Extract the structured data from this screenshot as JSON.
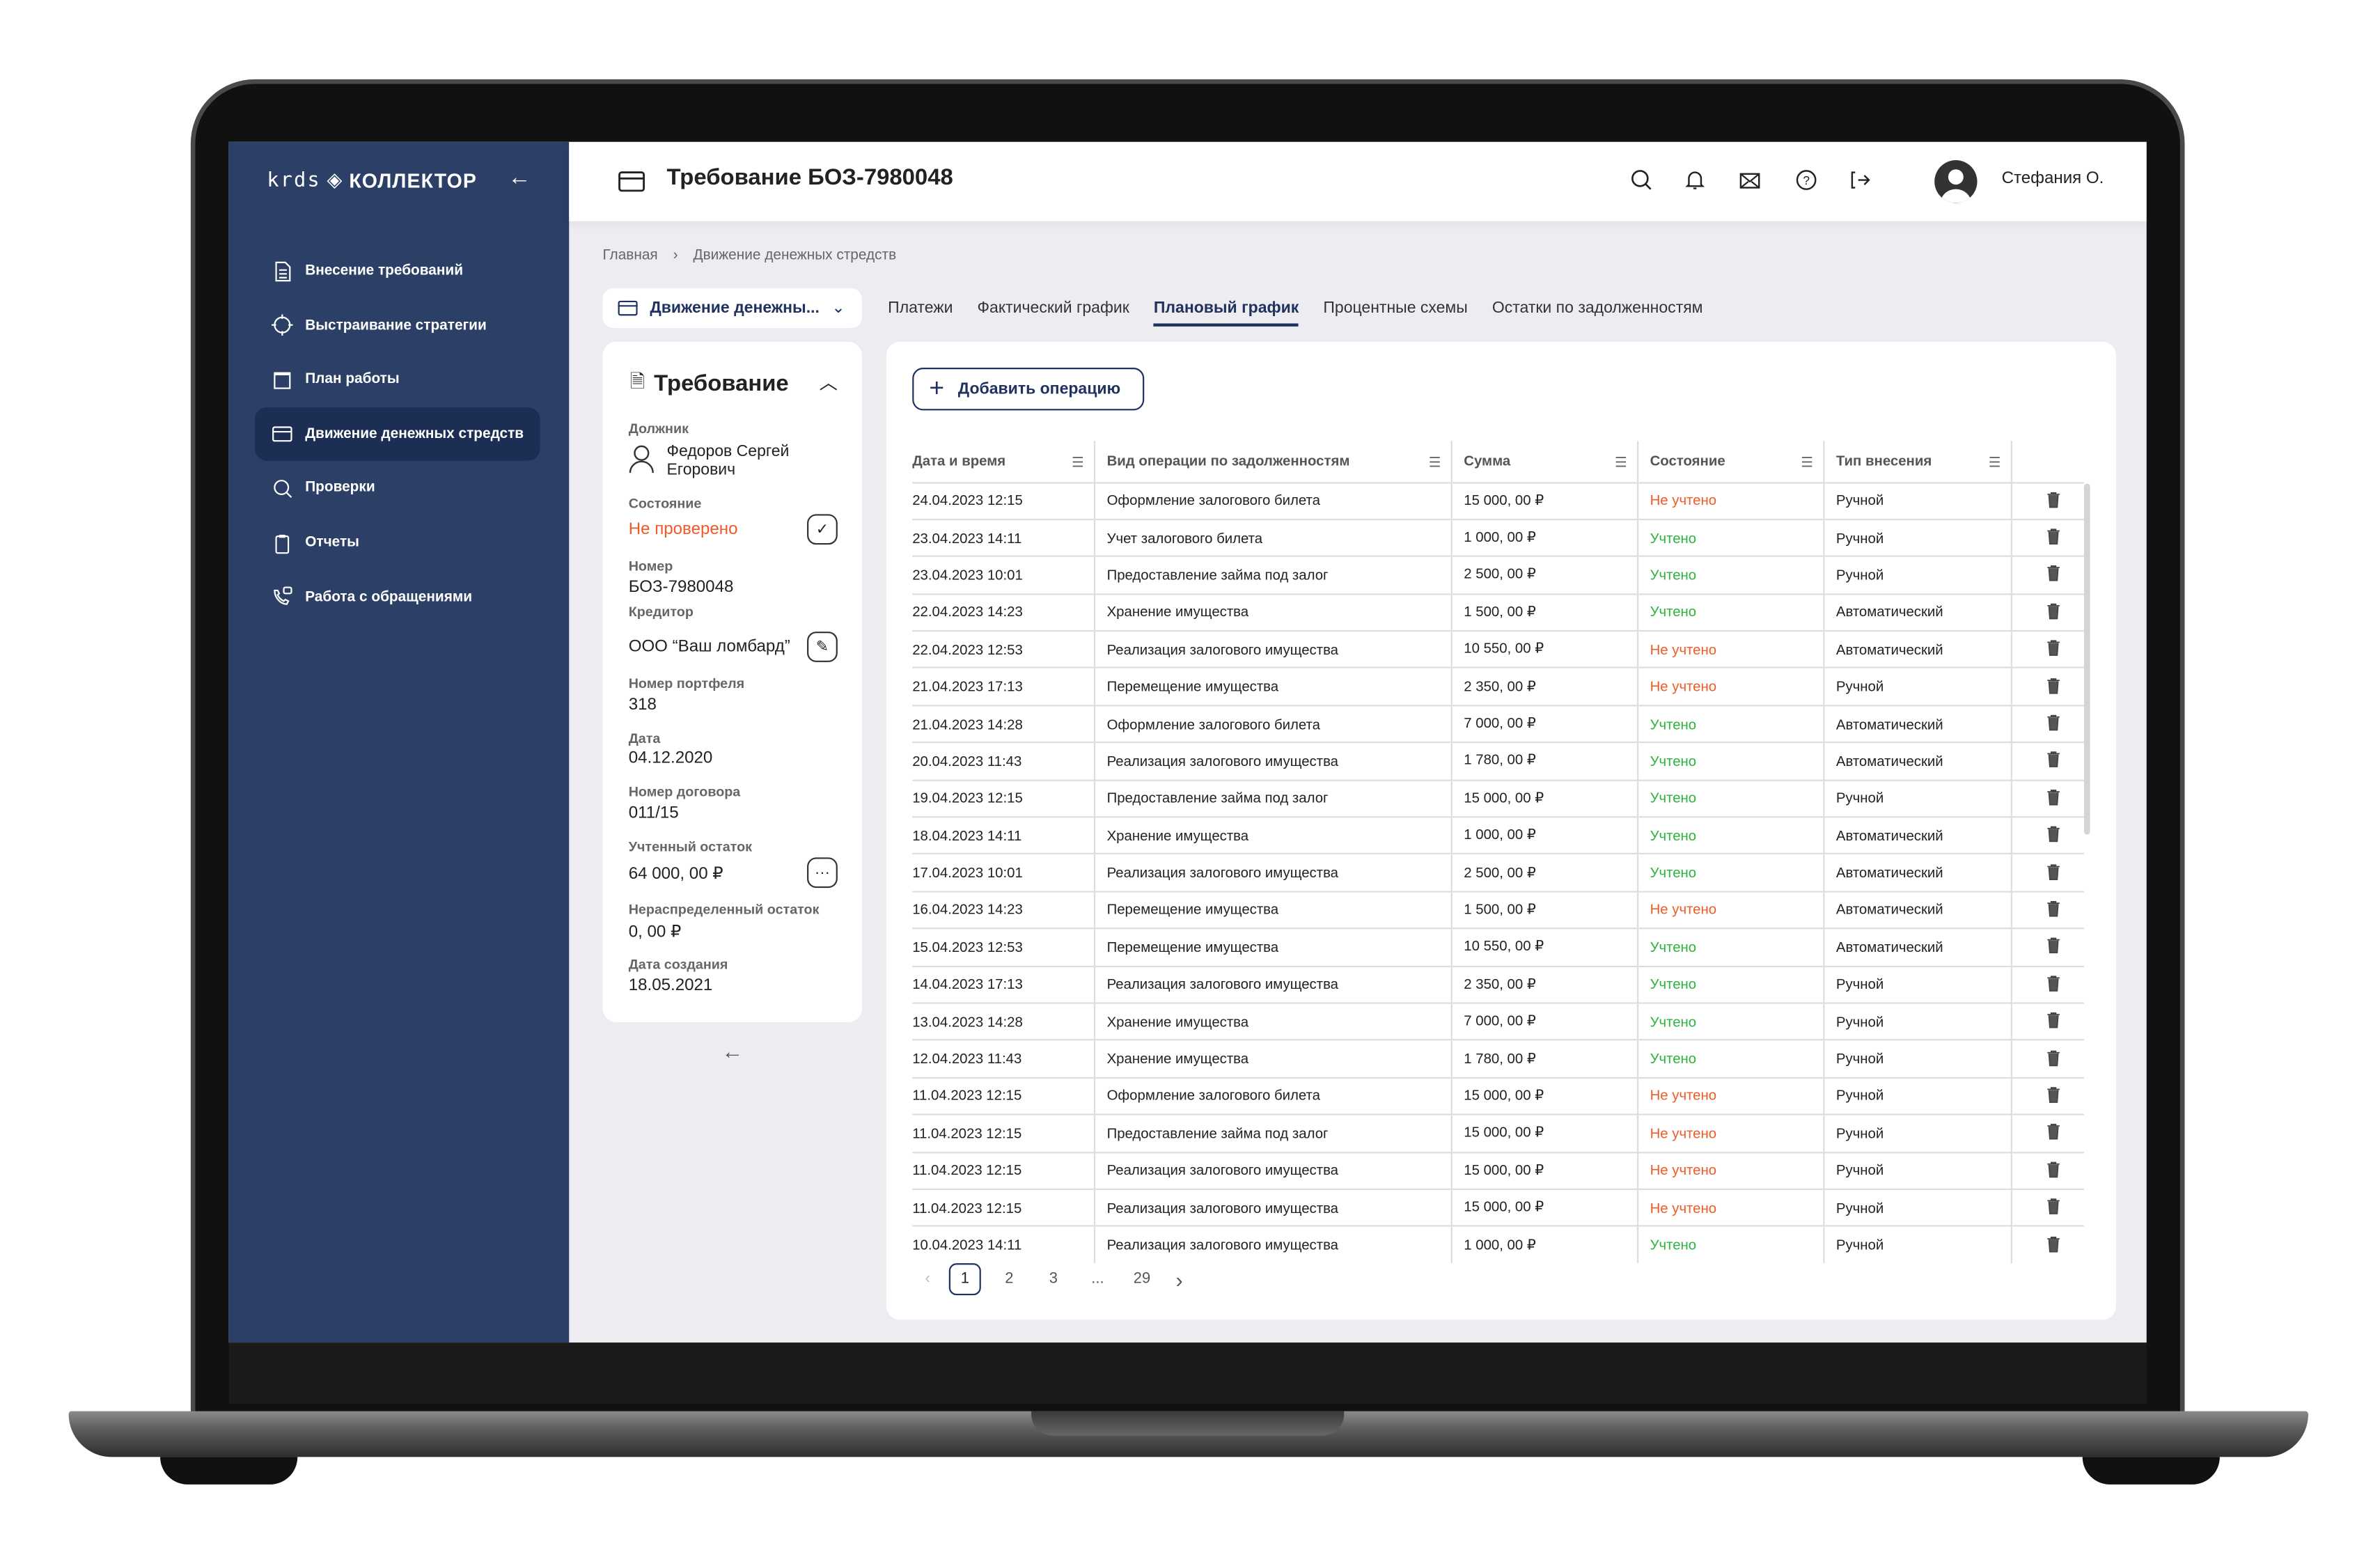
{
  "brand": {
    "prefix": "krds",
    "name": "КОЛЛЕКТОР"
  },
  "sidebar": {
    "items": [
      {
        "label": "Внесение требований",
        "icon": "document-icon"
      },
      {
        "label": "Выстраивание стратегии",
        "icon": "target-icon"
      },
      {
        "label": "План работы",
        "icon": "calendar-icon"
      },
      {
        "label": "Движение денежных стредств",
        "icon": "card-icon",
        "active": true
      },
      {
        "label": "Проверки",
        "icon": "search-icon"
      },
      {
        "label": "Отчеты",
        "icon": "clipboard-icon"
      },
      {
        "label": "Работа с обращениями",
        "icon": "phone-chat-icon"
      }
    ]
  },
  "header": {
    "title": "Требование БОЗ-7980048",
    "user": "Стефания О."
  },
  "breadcrumb": [
    "Главная",
    "Движение денежных стредств"
  ],
  "section_dropdown": "Движение денежны...",
  "tabs": [
    {
      "label": "Платежи"
    },
    {
      "label": "Фактический график"
    },
    {
      "label": "Плановый график",
      "active": true
    },
    {
      "label": "Процентные схемы"
    },
    {
      "label": "Остатки по задолженностям"
    }
  ],
  "claim": {
    "title": "Требование",
    "debtor_label": "Должник",
    "debtor": "Федоров Сергей Егорович",
    "state_label": "Состояние",
    "state": "Не проверено",
    "number_label": "Номер",
    "number": "БОЗ-7980048",
    "creditor_label": "Кредитор",
    "creditor": "ООО “Ваш ломбард”",
    "portfolio_label": "Номер портфеля",
    "portfolio": "318",
    "date_label": "Дата",
    "date": "04.12.2020",
    "contract_label": "Номер договора",
    "contract": "011/15",
    "balance_label": "Учтенный остаток",
    "balance": "64 000, 00 ₽",
    "unallocated_label": "Нераспределенный остаток",
    "unallocated": "0, 00 ₽",
    "created_label": "Дата создания",
    "created": "18.05.2021"
  },
  "add_button": "Добавить операцию",
  "table": {
    "columns": [
      "Дата и время",
      "Вид операции по задолженностям",
      "Сумма",
      "Состояние",
      "Тип внесения"
    ],
    "rows": [
      [
        "24.04.2023 12:15",
        "Оформление залогового билета",
        "15 000, 00 ₽",
        "Не учтено",
        "Ручной"
      ],
      [
        "23.04.2023 14:11",
        "Учет залогового билета",
        "1 000, 00 ₽",
        "Учтено",
        "Ручной"
      ],
      [
        "23.04.2023 10:01",
        "Предоставление займа под залог",
        "2 500, 00 ₽",
        "Учтено",
        "Ручной"
      ],
      [
        "22.04.2023 14:23",
        "Хранение имущества",
        "1 500, 00 ₽",
        "Учтено",
        "Автоматический"
      ],
      [
        "22.04.2023 12:53",
        "Реализация залогового имущества",
        "10 550, 00 ₽",
        "Не учтено",
        "Автоматический"
      ],
      [
        "21.04.2023 17:13",
        "Перемещение имущества",
        "2 350, 00 ₽",
        "Не учтено",
        "Ручной"
      ],
      [
        "21.04.2023 14:28",
        "Оформление залогового билета",
        "7 000, 00 ₽",
        "Учтено",
        "Автоматический"
      ],
      [
        "20.04.2023 11:43",
        "Реализация залогового имущества",
        "1 780, 00 ₽",
        "Учтено",
        "Автоматический"
      ],
      [
        "19.04.2023 12:15",
        "Предоставление займа под залог",
        "15 000, 00 ₽",
        "Учтено",
        "Ручной"
      ],
      [
        "18.04.2023 14:11",
        "Хранение имущества",
        "1 000, 00 ₽",
        "Учтено",
        "Автоматический"
      ],
      [
        "17.04.2023 10:01",
        "Реализация залогового имущества",
        "2 500, 00 ₽",
        "Учтено",
        "Автоматический"
      ],
      [
        "16.04.2023 14:23",
        "Перемещение имущества",
        "1 500, 00 ₽",
        "Не учтено",
        "Автоматический"
      ],
      [
        "15.04.2023 12:53",
        "Перемещение имущества",
        "10 550, 00 ₽",
        "Учтено",
        "Автоматический"
      ],
      [
        "14.04.2023 17:13",
        "Реализация залогового имущества",
        "2 350, 00 ₽",
        "Учтено",
        "Ручной"
      ],
      [
        "13.04.2023 14:28",
        "Хранение имущества",
        "7 000, 00 ₽",
        "Учтено",
        "Ручной"
      ],
      [
        "12.04.2023 11:43",
        "Хранение имущества",
        "1 780, 00 ₽",
        "Учтено",
        "Ручной"
      ],
      [
        "11.04.2023 12:15",
        "Оформление залогового билета",
        "15 000, 00 ₽",
        "Не учтено",
        "Ручной"
      ],
      [
        "11.04.2023 12:15",
        "Предоставление займа под залог",
        "15 000, 00 ₽",
        "Не учтено",
        "Ручной"
      ],
      [
        "11.04.2023 12:15",
        "Реализация залогового имущества",
        "15 000, 00 ₽",
        "Не учтено",
        "Ручной"
      ],
      [
        "11.04.2023 12:15",
        "Реализация залогового имущества",
        "15 000, 00 ₽",
        "Не учтено",
        "Ручной"
      ],
      [
        "10.04.2023 14:11",
        "Реализация залогового имущества",
        "1 000, 00 ₽",
        "Учтено",
        "Ручной"
      ]
    ]
  },
  "pagination": {
    "pages": [
      "1",
      "2",
      "3",
      "...",
      "29"
    ],
    "current": "1"
  },
  "colors": {
    "sidebar": "#2c3f66",
    "accent": "#1f3260",
    "not_accounted": "#f05a28",
    "accounted": "#2eb33e"
  }
}
